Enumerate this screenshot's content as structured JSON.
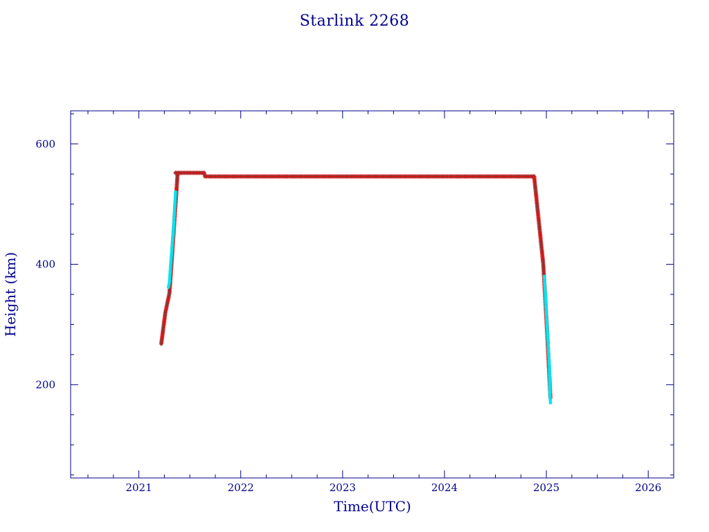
{
  "chart_data": {
    "type": "scatter",
    "title": "Starlink 2268",
    "xlabel": "Time(UTC)",
    "ylabel": "Height (km)",
    "xlim": [
      2020.33,
      2026.25
    ],
    "ylim": [
      45,
      655
    ],
    "x_ticks": [
      2021,
      2022,
      2023,
      2024,
      2025,
      2026
    ],
    "y_ticks": [
      200,
      400,
      600
    ],
    "x_minor_step": 0.25,
    "y_minor_step": 50,
    "grid": false,
    "marker_colors": {
      "primary": "#ff0000",
      "secondary": "#00e5ee",
      "dark": "#555555"
    },
    "series": [
      {
        "marker": "star",
        "color": "#ff0000",
        "segments": [
          {
            "x": [
              2021.22,
              2021.26,
              2021.3,
              2021.32,
              2021.36,
              2021.38
            ],
            "y": [
              268,
              320,
              352,
              400,
              500,
              550
            ]
          },
          {
            "x": [
              2021.36,
              2021.64,
              2021.65,
              2024.87,
              2024.88,
              2024.97,
              2025.01,
              2025.04
            ],
            "y": [
              552,
              552,
              546,
              546,
              546,
              400,
              280,
              178
            ]
          }
        ]
      },
      {
        "marker": "dot",
        "color": "#00e5ee",
        "segments": [
          {
            "x": [
              2021.29,
              2021.3,
              2021.31,
              2021.34,
              2021.36
            ],
            "y": [
              362,
              370,
              395,
              460,
              520
            ]
          },
          {
            "x": [
              2024.98,
              2025.03,
              2025.035,
              2025.04
            ],
            "y": [
              380,
              230,
              185,
              170
            ]
          }
        ]
      }
    ]
  }
}
